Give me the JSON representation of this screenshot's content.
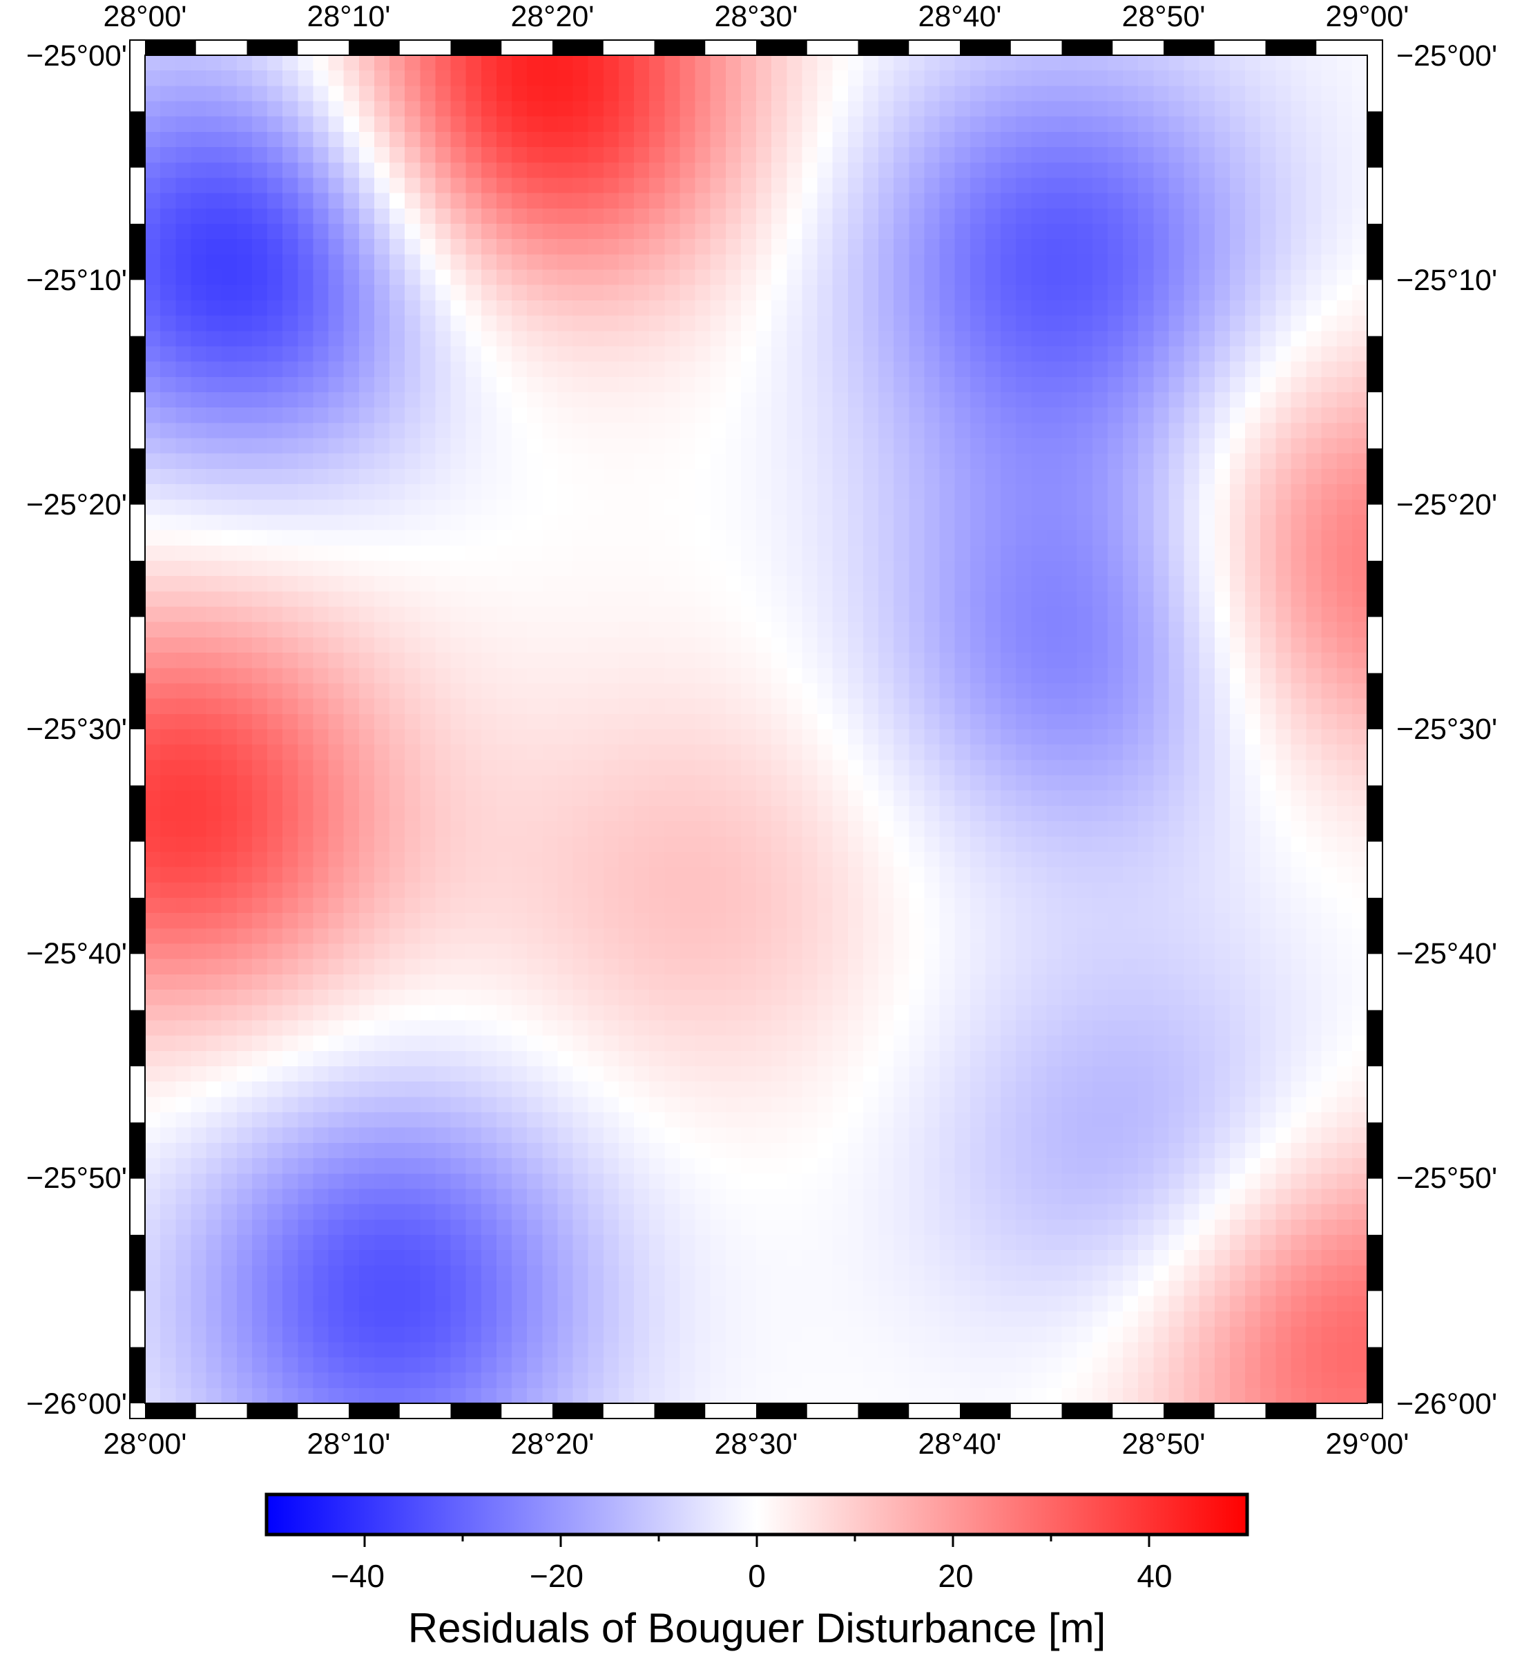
{
  "map": {
    "lon_labels": [
      "28°00'",
      "28°10'",
      "28°20'",
      "28°30'",
      "28°40'",
      "28°50'",
      "29°00'"
    ],
    "lat_labels": [
      "−25°00'",
      "−25°10'",
      "−25°20'",
      "−25°30'",
      "−25°40'",
      "−25°50'",
      "−26°00'"
    ],
    "lon_range_deg": [
      28.0,
      29.0
    ],
    "lat_range_deg": [
      -26.0,
      -25.0
    ],
    "frame_style": "checkered black-and-white fancy frame",
    "colormap": "polar (blue-white-red)"
  },
  "field": {
    "description_units": "m",
    "anomalies": [
      {
        "lon": 28.08,
        "lat": -25.15,
        "value": -40
      },
      {
        "lon": 28.32,
        "lat": -25.02,
        "value": 46
      },
      {
        "lon": 28.75,
        "lat": -25.15,
        "value": -32
      },
      {
        "lon": 28.78,
        "lat": -25.43,
        "value": -28
      },
      {
        "lon": 28.03,
        "lat": -25.56,
        "value": 38
      },
      {
        "lon": 28.45,
        "lat": -25.62,
        "value": 12
      },
      {
        "lon": 28.2,
        "lat": -25.92,
        "value": -34
      },
      {
        "lon": 28.82,
        "lat": -25.82,
        "value": -18
      },
      {
        "lon": 28.98,
        "lat": -25.38,
        "value": 30
      },
      {
        "lon": 28.98,
        "lat": -25.95,
        "value": 32
      }
    ]
  },
  "colorbar": {
    "title": "Residuals of Bouguer Disturbance [m]",
    "range": [
      -50,
      50
    ],
    "tick_labels": [
      "−40",
      "−20",
      "0",
      "20",
      "40"
    ],
    "tick_values": [
      -40,
      -20,
      0,
      20,
      40
    ],
    "minor_tick_values": [
      -30,
      -10,
      10,
      30
    ],
    "colors": {
      "low": "#0000ff",
      "mid": "#ffffff",
      "high": "#ff0000"
    }
  }
}
